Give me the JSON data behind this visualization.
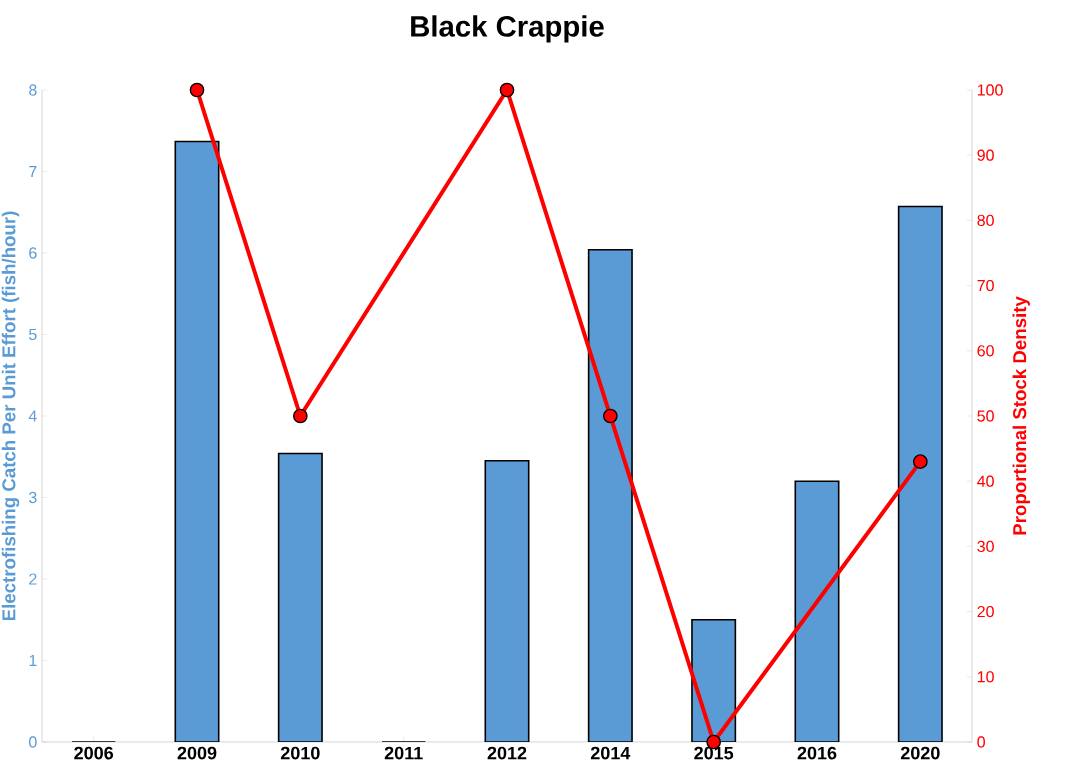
{
  "chart_data": {
    "type": "bar",
    "title": "Black Crappie",
    "ylabel": "Electrofishing Catch Per Unit Effort (fish/hour)",
    "y2label": "Proportional Stock Density",
    "categories": [
      "2006",
      "2009",
      "2010",
      "2011",
      "2012",
      "2014",
      "2015",
      "2016",
      "2020"
    ],
    "series": [
      {
        "color": "#5b9bd5",
        "values": [
          0,
          7.37,
          3.54,
          0,
          3.45,
          6.04,
          1.5,
          3.2,
          6.57
        ]
      },
      {
        "type": "line",
        "axis": "y2",
        "color": "#ff0000",
        "values": [
          null,
          100,
          50,
          null,
          100,
          50,
          0,
          null,
          43
        ]
      }
    ],
    "ylim": [
      0,
      8
    ],
    "yticks": [
      0,
      1,
      2,
      3,
      4,
      5,
      6,
      7,
      8
    ],
    "y2lim": [
      0,
      100
    ],
    "y2ticks": [
      0,
      10,
      20,
      30,
      40,
      50,
      60,
      70,
      80,
      90,
      100
    ],
    "marker": "circle",
    "line_style": "solid",
    "grid": false,
    "legend": false
  }
}
